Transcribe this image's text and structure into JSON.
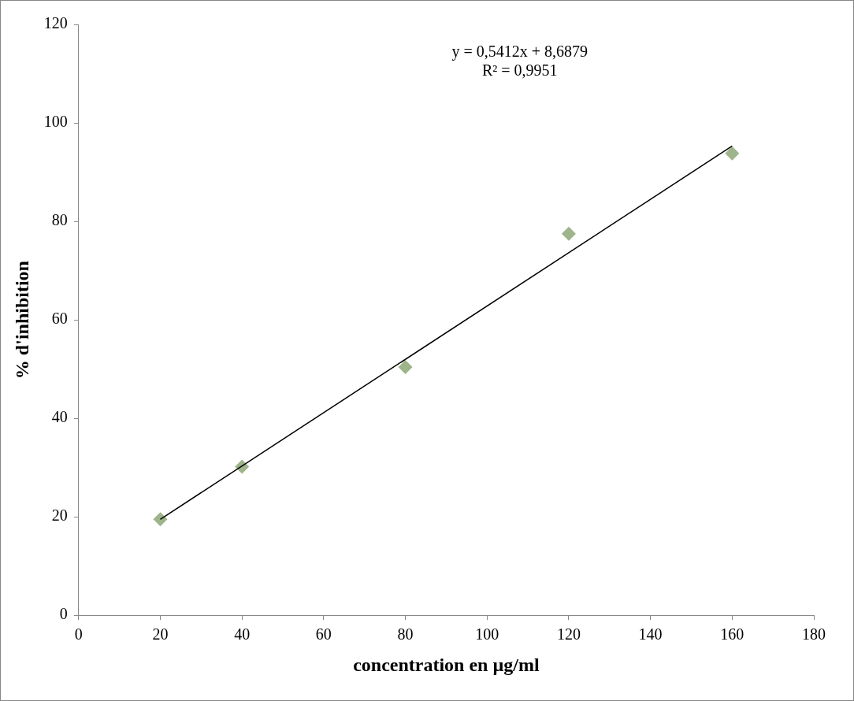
{
  "chart_data": {
    "type": "scatter",
    "xlabel": "concentration en µg/ml",
    "ylabel": "% d'inhibition",
    "series": [
      {
        "type": "scatter",
        "color": "#9eb48a",
        "x": [
          20,
          40,
          80,
          120,
          160
        ],
        "values": [
          19.5,
          30.2,
          50.4,
          77.5,
          93.8
        ],
        "marker": "diamond"
      },
      {
        "type": "line",
        "color": "#000000",
        "x": [
          20,
          160
        ],
        "values": [
          19.5,
          95.3
        ],
        "marker": "none",
        "line_style": "solid"
      }
    ],
    "annotations": [
      "y = 0,5412x + 8,6879",
      "R² = 0,9951"
    ],
    "xlim": [
      0,
      180
    ],
    "xticks": [
      0,
      20,
      40,
      60,
      80,
      100,
      120,
      140,
      160,
      180
    ],
    "ylim": [
      0,
      120
    ],
    "yticks": [
      0,
      20,
      40,
      60,
      80,
      100,
      120
    ],
    "grid": false,
    "legend": false
  }
}
